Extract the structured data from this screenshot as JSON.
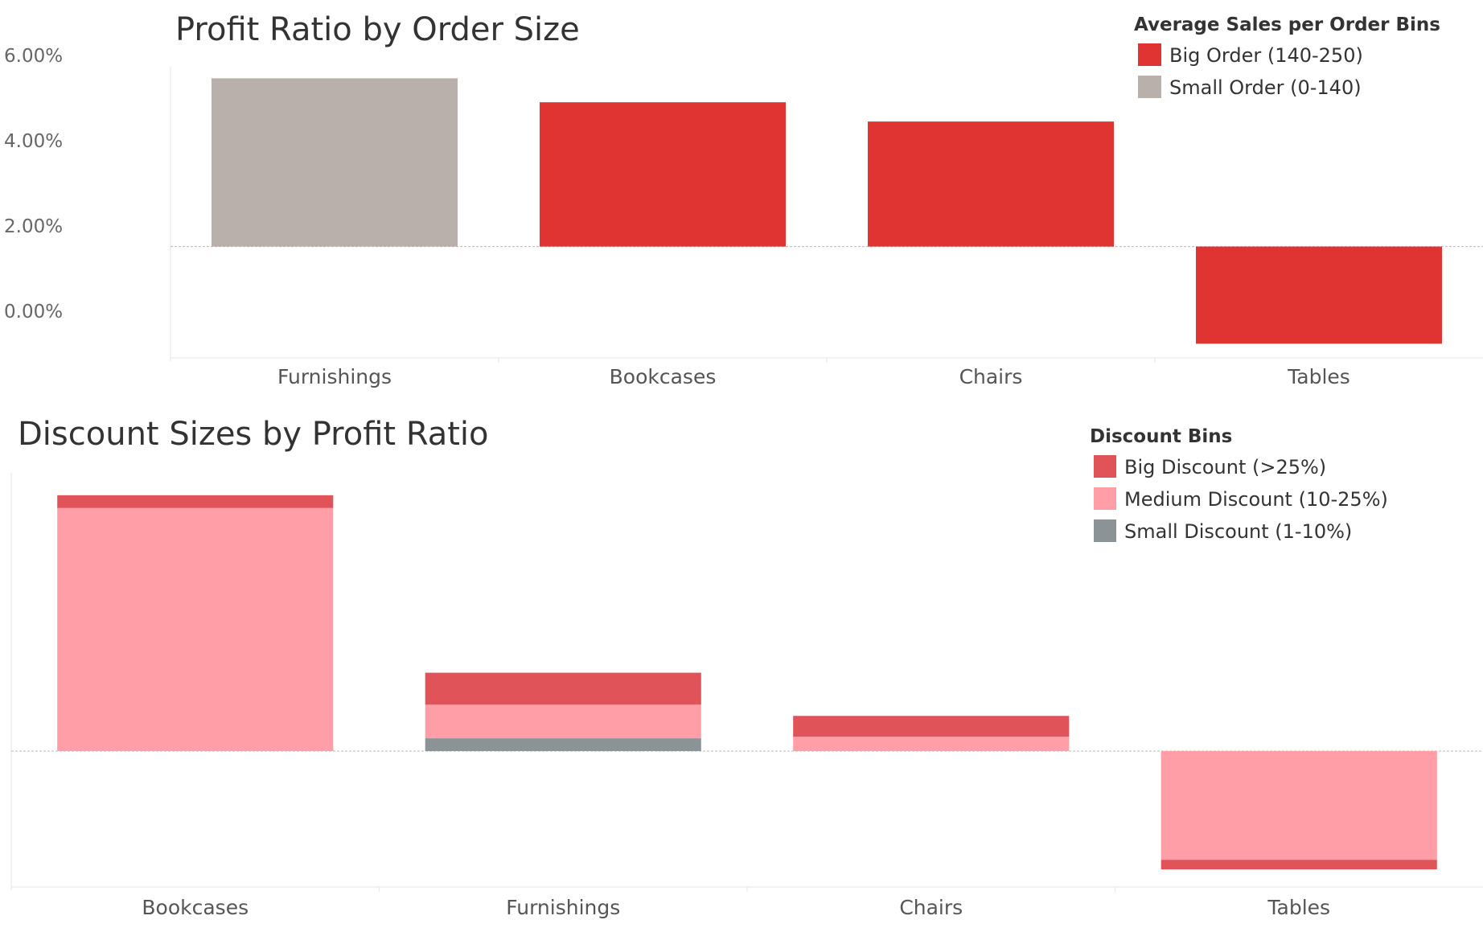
{
  "chart_data": [
    {
      "type": "bar",
      "title": "Profit Ratio by Order Size",
      "xlabel": "",
      "ylabel": "",
      "categories": [
        "Furnishings",
        "Bookcases",
        "Chairs",
        "Tables"
      ],
      "values": [
        3.93,
        3.37,
        2.92,
        -2.27
      ],
      "bar_series": [
        "Small Order (0-140)",
        "Big Order (140-250)",
        "Big Order (140-250)",
        "Big Order (140-250)"
      ],
      "y_ticks": [
        "6.00%",
        "4.00%",
        "2.00%",
        "0.00%"
      ],
      "ylim": [
        -2.6,
        4.2
      ],
      "grid": false,
      "legend": {
        "title": "Average Sales per Order Bins",
        "placement": "top-right",
        "items": [
          {
            "label": "Big Order (140-250)",
            "color": "#e03433"
          },
          {
            "label": "Small Order (0-140)",
            "color": "#bab0ab"
          }
        ]
      }
    },
    {
      "type": "bar",
      "stacked": true,
      "title": "Discount Sizes by Profit Ratio",
      "xlabel": "",
      "ylabel": "",
      "categories": [
        "Bookcases",
        "Furnishings",
        "Chairs",
        "Tables"
      ],
      "series": [
        {
          "name": "Small Discount (1-10%)",
          "color": "#8c9396",
          "values": [
            0,
            0.8,
            0,
            0
          ]
        },
        {
          "name": "Medium Discount (10-25%)",
          "color": "#ff9ea6",
          "values": [
            15.2,
            2.1,
            0.9,
            -6.8
          ]
        },
        {
          "name": "Big Discount (>25%)",
          "color": "#e05459",
          "values": [
            0.8,
            2.0,
            1.3,
            -0.6
          ]
        }
      ],
      "ylim": [
        -8.5,
        17.4
      ],
      "grid": false,
      "legend": {
        "title": "Discount Bins",
        "placement": "top-right",
        "items": [
          {
            "label": "Big Discount (>25%)",
            "color": "#e05459"
          },
          {
            "label": "Medium Discount (10-25%)",
            "color": "#ff9ea6"
          },
          {
            "label": "Small Discount (1-10%)",
            "color": "#8c9396"
          }
        ]
      }
    }
  ]
}
